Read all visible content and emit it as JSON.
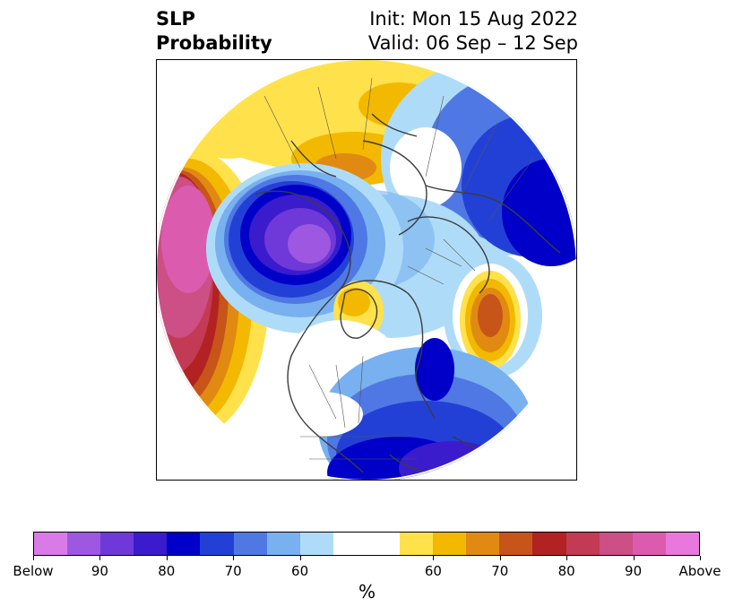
{
  "header": {
    "title_line1": "SLP",
    "title_line2": "Probability",
    "init": "Init: Mon 15 Aug 2022",
    "valid": "Valid: 06 Sep – 12 Sep"
  },
  "colorbar": {
    "colors": [
      "#d97ae8",
      "#9e57e0",
      "#6e39d8",
      "#3a1ccd",
      "#0000c8",
      "#2340d6",
      "#4f78e4",
      "#78b0f0",
      "#aedcf8",
      "#ffffff",
      "#ffe14b",
      "#f2b900",
      "#e08a12",
      "#c75418",
      "#b22222",
      "#c23a54",
      "#cc4f86",
      "#db5cae",
      "#e878dc"
    ],
    "ticks": [
      "Below",
      "90",
      "80",
      "70",
      "60",
      "60",
      "70",
      "80",
      "90",
      "Above"
    ],
    "unit": "%"
  },
  "map": {
    "projection": "north-polar-stereographic",
    "field": "sea-level-pressure-probability"
  }
}
